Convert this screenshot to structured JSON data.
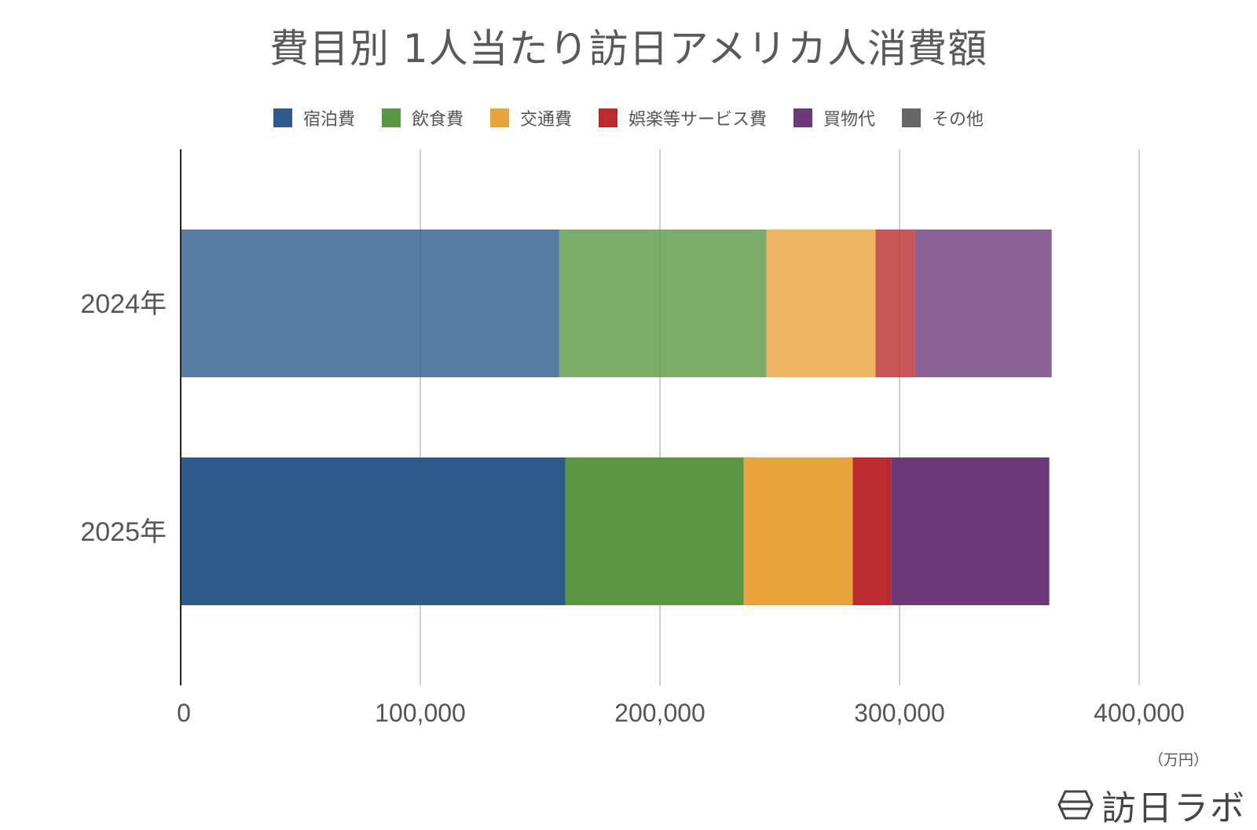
{
  "chart_data": {
    "type": "bar",
    "orientation": "horizontal",
    "stacked": true,
    "title": "費目別 1人当たり訪日アメリカ人消費額",
    "categories": [
      "2024年",
      "2025年"
    ],
    "series": [
      {
        "name": "宿泊費",
        "color": "#2e5a8c",
        "values": [
          158000,
          160500
        ]
      },
      {
        "name": "飲食費",
        "color": "#5c9645",
        "values": [
          86500,
          74500
        ]
      },
      {
        "name": "交通費",
        "color": "#e8a33d",
        "values": [
          45500,
          45500
        ]
      },
      {
        "name": "娯楽等サービス費",
        "color": "#bb2a2e",
        "values": [
          16500,
          16000
        ]
      },
      {
        "name": "買物代",
        "color": "#6c3a78",
        "values": [
          57000,
          66000
        ]
      },
      {
        "name": "その他",
        "color": "#666666",
        "values": [
          0,
          0
        ]
      }
    ],
    "category_opacity": [
      0.8,
      1.0
    ],
    "xlim": [
      0,
      400000
    ],
    "xticks": [
      "0",
      "100,000",
      "200,000",
      "300,000",
      "400,000"
    ],
    "xunit": "（万円）",
    "grid": true,
    "legend_position": "top"
  },
  "brand": {
    "name": "訪日ラボ"
  }
}
